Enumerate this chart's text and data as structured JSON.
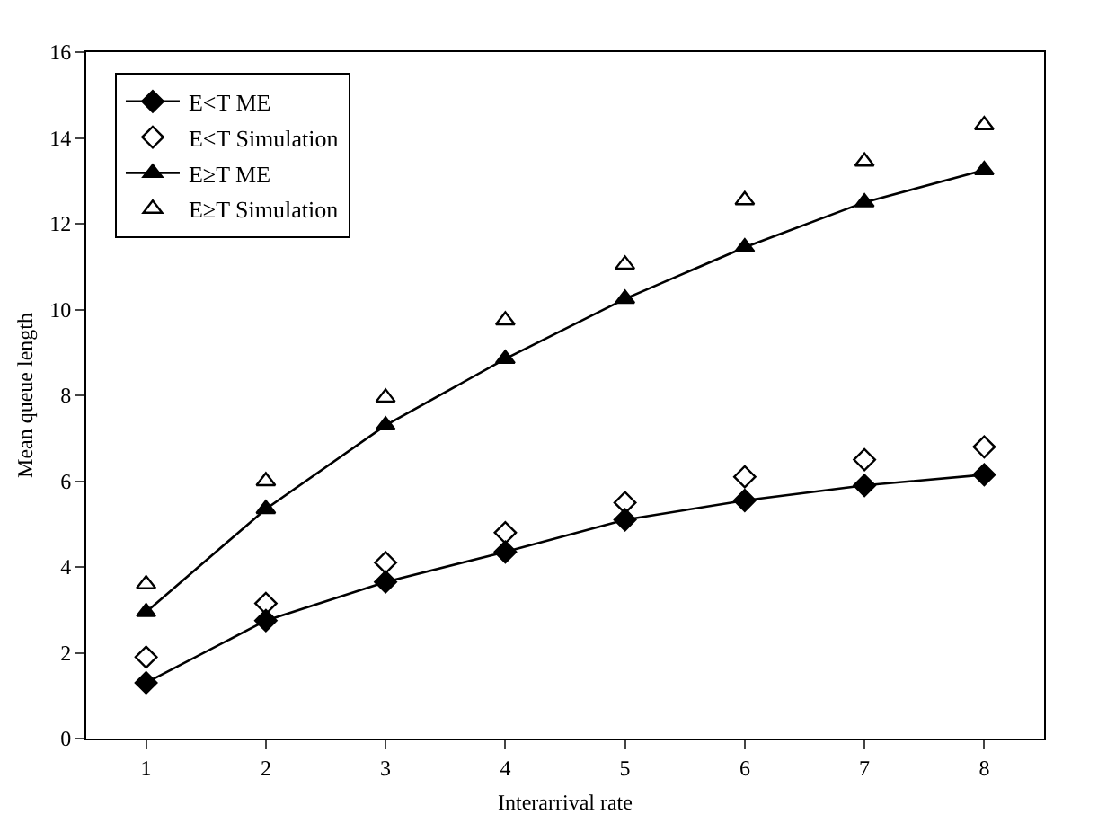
{
  "chart_data": {
    "type": "line",
    "xlabel": "Interarrival rate",
    "ylabel": "Mean queue length",
    "categories": [
      "1",
      "2",
      "3",
      "4",
      "5",
      "6",
      "7",
      "8"
    ],
    "ylim": [
      0,
      16
    ],
    "yticks": [
      0,
      2,
      4,
      6,
      8,
      10,
      12,
      14,
      16
    ],
    "legend": "top left",
    "series": [
      {
        "name": "E<T ME",
        "marker": "diamond",
        "color": "#000000",
        "values": [
          1.3,
          2.75,
          3.65,
          4.35,
          5.1,
          5.55,
          5.9,
          6.15
        ]
      },
      {
        "name": "E<T Simulation",
        "type": "scatter",
        "marker": "diamond",
        "color": "#000000",
        "values": [
          1.9,
          3.15,
          4.1,
          4.8,
          5.5,
          6.1,
          6.5,
          6.8
        ]
      },
      {
        "name": "E≥T ME",
        "marker": "triangle",
        "color": "#000000",
        "values": [
          2.95,
          5.35,
          7.3,
          8.85,
          10.25,
          11.45,
          12.5,
          13.25
        ]
      },
      {
        "name": "E≥T Simulation",
        "type": "scatter",
        "marker": "triangle",
        "color": "#000000",
        "values": [
          3.6,
          6.0,
          7.95,
          9.75,
          11.05,
          12.55,
          13.45,
          14.3
        ]
      }
    ]
  }
}
